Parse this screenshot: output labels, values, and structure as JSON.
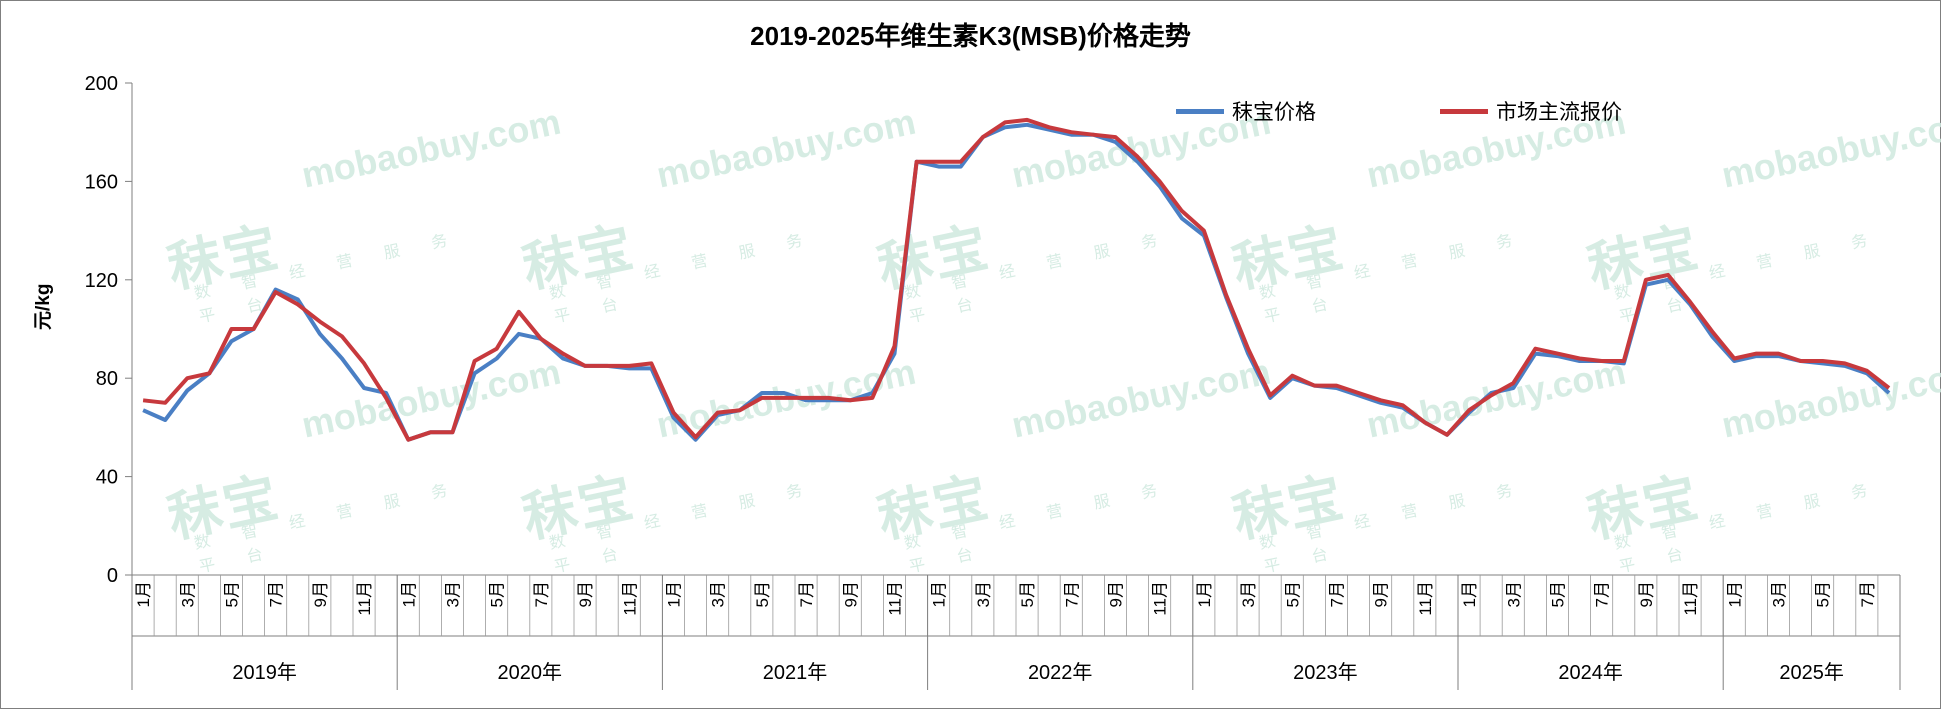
{
  "title": "2019-2025年维生素K3(MSB)价格走势",
  "watermark": {
    "cn": "秣宝",
    "en": "mobaobuy",
    "com": ".com",
    "sub": "数 智 经 营 服 务 平 台"
  },
  "colors": {
    "series_1": "#4a7fc4",
    "series_2": "#c7393d",
    "axis": "#7f7f7f",
    "text": "#000000",
    "watermark": "#cfe9df"
  },
  "chart_data": {
    "type": "line",
    "title": "2019-2025年维生素K3(MSB)价格走势",
    "ylabel": "元/kg",
    "xlabel": "",
    "ylim": [
      0,
      200
    ],
    "yticks": [
      0,
      40,
      80,
      120,
      160,
      200
    ],
    "legend_position": "top-right",
    "grid": false,
    "x_start": "2019-01",
    "x_end": "2025-08",
    "year_labels": [
      "2019年",
      "2020年",
      "2021年",
      "2022年",
      "2023年",
      "2024年",
      "2025年"
    ],
    "month_tick_labels": [
      "1月",
      "3月",
      "5月",
      "7月",
      "9月",
      "11月"
    ],
    "series": [
      {
        "name": "秣宝价格",
        "color": "#4a7fc4",
        "x": [
          "2019-01",
          "2019-02",
          "2019-03",
          "2019-04",
          "2019-05",
          "2019-06",
          "2019-07",
          "2019-08",
          "2019-09",
          "2019-10",
          "2019-11",
          "2019-12",
          "2020-01",
          "2020-02",
          "2020-03",
          "2020-04",
          "2020-05",
          "2020-06",
          "2020-07",
          "2020-08",
          "2020-09",
          "2020-10",
          "2020-11",
          "2020-12",
          "2021-01",
          "2021-02",
          "2021-03",
          "2021-04",
          "2021-05",
          "2021-06",
          "2021-07",
          "2021-08",
          "2021-09",
          "2021-10",
          "2021-11",
          "2021-12",
          "2022-01",
          "2022-02",
          "2022-03",
          "2022-04",
          "2022-05",
          "2022-06",
          "2022-07",
          "2022-08",
          "2022-09",
          "2022-10",
          "2022-11",
          "2022-12",
          "2023-01",
          "2023-02",
          "2023-03",
          "2023-04",
          "2023-05",
          "2023-06",
          "2023-07",
          "2023-08",
          "2023-09",
          "2023-10",
          "2023-11",
          "2023-12",
          "2024-01",
          "2024-02",
          "2024-03",
          "2024-04",
          "2024-05",
          "2024-06",
          "2024-07",
          "2024-08",
          "2024-09",
          "2024-10",
          "2024-11",
          "2024-12",
          "2025-01",
          "2025-02",
          "2025-03",
          "2025-04",
          "2025-05",
          "2025-06",
          "2025-07",
          "2025-08"
        ],
        "values": [
          67,
          63,
          75,
          82,
          95,
          100,
          116,
          112,
          98,
          88,
          76,
          74,
          55,
          58,
          58,
          82,
          88,
          98,
          96,
          88,
          85,
          85,
          84,
          84,
          64,
          55,
          65,
          67,
          74,
          74,
          71,
          71,
          71,
          74,
          90,
          168,
          166,
          166,
          178,
          182,
          183,
          181,
          179,
          179,
          176,
          168,
          158,
          145,
          138,
          113,
          90,
          72,
          80,
          77,
          76,
          73,
          70,
          68,
          62,
          57,
          66,
          74,
          76,
          90,
          89,
          87,
          87,
          86,
          118,
          120,
          110,
          97,
          87,
          89,
          89,
          87,
          86,
          85,
          82,
          74
        ]
      },
      {
        "name": "市场主流报价",
        "color": "#c7393d",
        "x": [
          "2019-01",
          "2019-02",
          "2019-03",
          "2019-04",
          "2019-05",
          "2019-06",
          "2019-07",
          "2019-08",
          "2019-09",
          "2019-10",
          "2019-11",
          "2019-12",
          "2020-01",
          "2020-02",
          "2020-03",
          "2020-04",
          "2020-05",
          "2020-06",
          "2020-07",
          "2020-08",
          "2020-09",
          "2020-10",
          "2020-11",
          "2020-12",
          "2021-01",
          "2021-02",
          "2021-03",
          "2021-04",
          "2021-05",
          "2021-06",
          "2021-07",
          "2021-08",
          "2021-09",
          "2021-10",
          "2021-11",
          "2021-12",
          "2022-01",
          "2022-02",
          "2022-03",
          "2022-04",
          "2022-05",
          "2022-06",
          "2022-07",
          "2022-08",
          "2022-09",
          "2022-10",
          "2022-11",
          "2022-12",
          "2023-01",
          "2023-02",
          "2023-03",
          "2023-04",
          "2023-05",
          "2023-06",
          "2023-07",
          "2023-08",
          "2023-09",
          "2023-10",
          "2023-11",
          "2023-12",
          "2024-01",
          "2024-02",
          "2024-03",
          "2024-04",
          "2024-05",
          "2024-06",
          "2024-07",
          "2024-08",
          "2024-09",
          "2024-10",
          "2024-11",
          "2024-12",
          "2025-01",
          "2025-02",
          "2025-03",
          "2025-04",
          "2025-05",
          "2025-06",
          "2025-07",
          "2025-08"
        ],
        "values": [
          71,
          70,
          80,
          82,
          100,
          100,
          115,
          110,
          103,
          97,
          86,
          72,
          55,
          58,
          58,
          87,
          92,
          107,
          96,
          90,
          85,
          85,
          85,
          86,
          66,
          56,
          66,
          67,
          72,
          72,
          72,
          72,
          71,
          72,
          93,
          168,
          168,
          168,
          178,
          184,
          185,
          182,
          180,
          179,
          178,
          170,
          160,
          148,
          140,
          114,
          92,
          73,
          81,
          77,
          77,
          74,
          71,
          69,
          62,
          57,
          67,
          73,
          78,
          92,
          90,
          88,
          87,
          87,
          120,
          122,
          111,
          99,
          88,
          90,
          90,
          87,
          87,
          86,
          83,
          76
        ]
      }
    ]
  }
}
